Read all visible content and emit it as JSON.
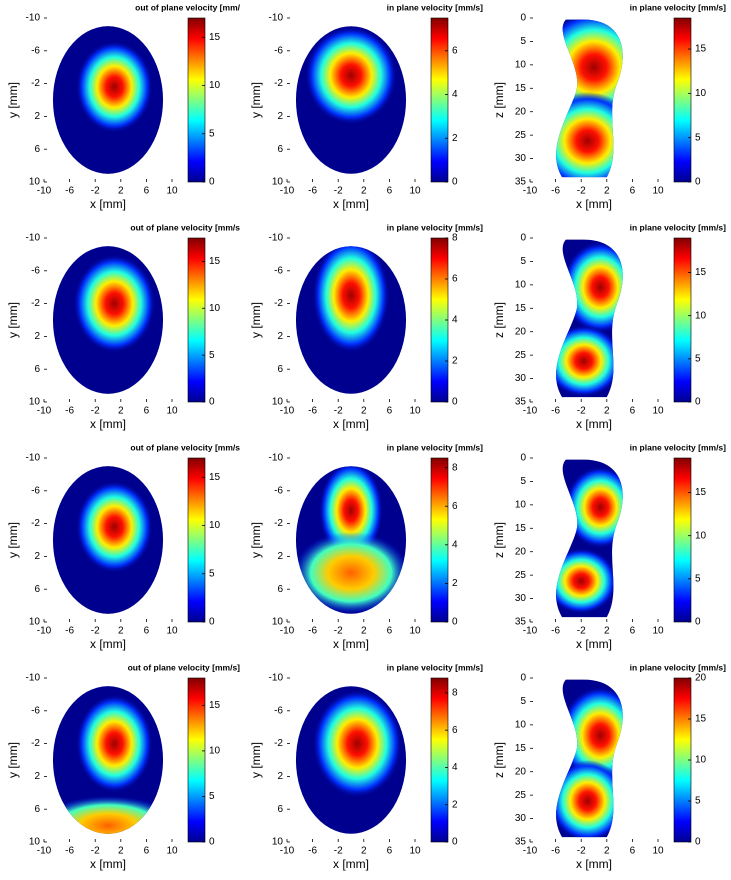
{
  "chart_data": [
    {
      "type": "heatmap",
      "colorbar_title": "out of plane velocity [mm/",
      "xlabel": "x [mm]",
      "ylabel": "y [mm]",
      "xlim": [
        -10,
        10
      ],
      "xticks": [
        -10,
        -6,
        -2,
        2,
        6,
        10
      ],
      "ylim": [
        -10,
        10
      ],
      "yticks": [
        -10,
        -6,
        -2,
        2,
        6,
        10
      ],
      "y_inverted": true,
      "clim": [
        0,
        17
      ],
      "cticks": [
        0,
        5,
        10,
        15
      ],
      "colormap": "jet"
    },
    {
      "type": "heatmap",
      "colorbar_title": "in plane velocity [mm/s]",
      "xlabel": "x [mm]",
      "ylabel": "y [mm]",
      "xlim": [
        -10,
        10
      ],
      "xticks": [
        -10,
        -6,
        -2,
        2,
        6,
        10
      ],
      "ylim": [
        -10,
        10
      ],
      "yticks": [
        -10,
        -6,
        -2,
        2,
        6,
        10
      ],
      "y_inverted": true,
      "clim": [
        0,
        7.5
      ],
      "cticks": [
        0,
        2,
        4,
        6
      ],
      "colormap": "jet"
    },
    {
      "type": "heatmap",
      "colorbar_title": "in plane velocity [mm/s]",
      "xlabel": "x [mm]",
      "ylabel": "z [mm]",
      "xlim": [
        -10,
        10
      ],
      "xticks": [
        -10,
        -6,
        -2,
        2,
        6,
        10
      ],
      "ylim": [
        0,
        35
      ],
      "yticks": [
        0,
        5,
        10,
        15,
        20,
        25,
        30,
        35
      ],
      "y_inverted": true,
      "clim": [
        0,
        18.5
      ],
      "cticks": [
        0,
        5,
        10,
        15
      ],
      "colormap": "jet"
    },
    {
      "type": "heatmap",
      "colorbar_title": "out of plane velocity [mm/s",
      "xlabel": "x [mm]",
      "ylabel": "y [mm]",
      "xlim": [
        -10,
        10
      ],
      "xticks": [
        -10,
        -6,
        -2,
        2,
        6,
        10
      ],
      "ylim": [
        -10,
        10
      ],
      "yticks": [
        -10,
        -6,
        -2,
        2,
        6,
        10
      ],
      "y_inverted": true,
      "clim": [
        0,
        17.5
      ],
      "cticks": [
        0,
        5,
        10,
        15
      ],
      "colormap": "jet"
    },
    {
      "type": "heatmap",
      "colorbar_title": "in plane velocity [mm/s]",
      "xlabel": "x [mm]",
      "ylabel": "y [mm]",
      "xlim": [
        -10,
        10
      ],
      "xticks": [
        -10,
        -6,
        -2,
        2,
        6,
        10
      ],
      "ylim": [
        -10,
        10
      ],
      "yticks": [
        -10,
        -6,
        -2,
        2,
        6,
        10
      ],
      "y_inverted": true,
      "clim": [
        0,
        8
      ],
      "cticks": [
        0,
        2,
        4,
        6,
        8
      ],
      "colormap": "jet"
    },
    {
      "type": "heatmap",
      "colorbar_title": "in plane velocity [mm/s]",
      "xlabel": "x [mm]",
      "ylabel": "z [mm]",
      "xlim": [
        -10,
        10
      ],
      "xticks": [
        -10,
        -6,
        -2,
        2,
        6,
        10
      ],
      "ylim": [
        0,
        35
      ],
      "yticks": [
        0,
        5,
        10,
        15,
        20,
        25,
        30,
        35
      ],
      "y_inverted": true,
      "clim": [
        0,
        19
      ],
      "cticks": [
        0,
        5,
        10,
        15
      ],
      "colormap": "jet"
    },
    {
      "type": "heatmap",
      "colorbar_title": "out of plane velocity [mm/s",
      "xlabel": "x [mm]",
      "ylabel": "y [mm]",
      "xlim": [
        -10,
        10
      ],
      "xticks": [
        -10,
        -6,
        -2,
        2,
        6,
        10
      ],
      "ylim": [
        -10,
        10
      ],
      "yticks": [
        -10,
        -6,
        -2,
        2,
        6,
        10
      ],
      "y_inverted": true,
      "clim": [
        0,
        17
      ],
      "cticks": [
        0,
        5,
        10,
        15
      ],
      "colormap": "jet"
    },
    {
      "type": "heatmap",
      "colorbar_title": "in plane velocity [mm/s]",
      "xlabel": "x [mm]",
      "ylabel": "y [mm]",
      "xlim": [
        -10,
        10
      ],
      "xticks": [
        -10,
        -6,
        -2,
        2,
        6,
        10
      ],
      "ylim": [
        -10,
        10
      ],
      "yticks": [
        -10,
        -6,
        -2,
        2,
        6,
        10
      ],
      "y_inverted": true,
      "clim": [
        0,
        8.5
      ],
      "cticks": [
        0,
        2,
        4,
        6,
        8
      ],
      "colormap": "jet"
    },
    {
      "type": "heatmap",
      "colorbar_title": "in plane velocity [mm/s]",
      "xlabel": "x [mm]",
      "ylabel": "z [mm]",
      "xlim": [
        -10,
        10
      ],
      "xticks": [
        -10,
        -6,
        -2,
        2,
        6,
        10
      ],
      "ylim": [
        0,
        35
      ],
      "yticks": [
        0,
        5,
        10,
        15,
        20,
        25,
        30,
        35
      ],
      "y_inverted": true,
      "clim": [
        0,
        19
      ],
      "cticks": [
        0,
        5,
        10,
        15
      ],
      "colormap": "jet"
    },
    {
      "type": "heatmap",
      "colorbar_title": "out of plane velocity [mm/s]",
      "xlabel": "x [mm]",
      "ylabel": "y [mm]",
      "xlim": [
        -10,
        10
      ],
      "xticks": [
        -10,
        -6,
        -2,
        2,
        6,
        10
      ],
      "ylim": [
        -10,
        10
      ],
      "yticks": [
        -10,
        -6,
        -2,
        2,
        6,
        10
      ],
      "y_inverted": true,
      "clim": [
        0,
        18
      ],
      "cticks": [
        0,
        5,
        10,
        15
      ],
      "colormap": "jet"
    },
    {
      "type": "heatmap",
      "colorbar_title": "in plane velocity [mm/s]",
      "xlabel": "x [mm]",
      "ylabel": "y [mm]",
      "xlim": [
        -10,
        10
      ],
      "xticks": [
        -10,
        -6,
        -2,
        2,
        6,
        10
      ],
      "ylim": [
        -10,
        10
      ],
      "yticks": [
        -10,
        -6,
        -2,
        2,
        6,
        10
      ],
      "y_inverted": true,
      "clim": [
        0,
        8.8
      ],
      "cticks": [
        0,
        2,
        4,
        6,
        8
      ],
      "colormap": "jet"
    },
    {
      "type": "heatmap",
      "colorbar_title": "in plane velocity [mm/s]",
      "xlabel": "x [mm]",
      "ylabel": "z [mm]",
      "xlim": [
        -10,
        10
      ],
      "xticks": [
        -10,
        -6,
        -2,
        2,
        6,
        10
      ],
      "ylim": [
        0,
        35
      ],
      "yticks": [
        0,
        5,
        10,
        15,
        20,
        25,
        30,
        35
      ],
      "y_inverted": true,
      "clim": [
        0,
        20
      ],
      "cticks": [
        0,
        5,
        10,
        15,
        20
      ],
      "colormap": "jet"
    }
  ]
}
